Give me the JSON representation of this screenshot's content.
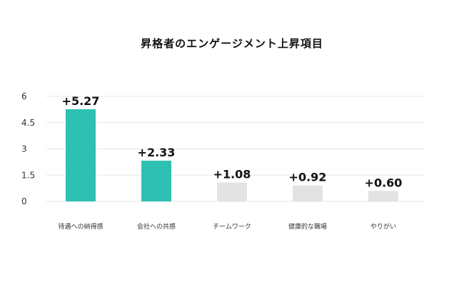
{
  "chart_data": {
    "type": "bar",
    "title": "昇格者のエンゲージメント上昇項目",
    "categories": [
      "待遇への納得感",
      "会社への共感",
      "チームワーク",
      "健康的な職場",
      "やりがい"
    ],
    "values": [
      5.27,
      2.33,
      1.08,
      0.92,
      0.6
    ],
    "data_labels": [
      "+5.27",
      "+2.33",
      "+1.08",
      "+0.92",
      "+0.60"
    ],
    "y_ticks": [
      "0",
      "1.5",
      "3",
      "4.5",
      "6"
    ],
    "ylim": [
      0,
      6
    ],
    "grid": true,
    "legend": "none",
    "colors": {
      "highlight": "#2fc0b4",
      "muted": "#e3e3e3",
      "grid": "#e6e6e6"
    },
    "highlight": [
      true,
      true,
      false,
      false,
      false
    ]
  }
}
